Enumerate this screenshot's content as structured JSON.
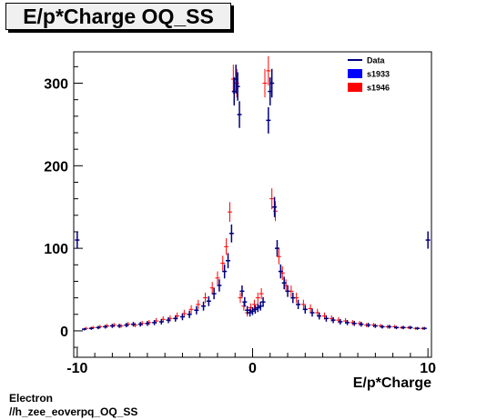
{
  "chart_data": {
    "type": "scatter",
    "title": "E/p*Charge OQ_SS",
    "xlabel": "E/p*Charge",
    "ylabel": "",
    "xlim": [
      -10.2,
      10.2
    ],
    "ylim": [
      -32,
      338
    ],
    "x_ticks": [
      -10,
      0,
      10
    ],
    "x_tick_labels": [
      "-10",
      "0",
      "10"
    ],
    "y_ticks": [
      0,
      100,
      200,
      300
    ],
    "y_tick_labels": [
      "0",
      "100",
      "200",
      "300"
    ],
    "grid": false,
    "legend_position": "top-right",
    "legend": [
      {
        "label": "Data",
        "style": "line",
        "color": "#000080"
      },
      {
        "label": "s1933",
        "style": "box",
        "color": "#0000ff"
      },
      {
        "label": "s1946",
        "style": "box",
        "color": "#ff0000"
      }
    ],
    "series": [
      {
        "name": "s1946",
        "color": "#ff0000",
        "x": [
          -9.5,
          -9.1,
          -8.7,
          -8.3,
          -7.9,
          -7.5,
          -7.1,
          -6.7,
          -6.3,
          -5.9,
          -5.5,
          -5.1,
          -4.7,
          -4.3,
          -3.9,
          -3.5,
          -3.1,
          -2.7,
          -2.3,
          -2.0,
          -1.7,
          -1.5,
          -1.3,
          -1.1,
          -0.9,
          -0.7,
          -0.5,
          -0.3,
          -0.1,
          0.1,
          0.3,
          0.5,
          0.7,
          0.9,
          1.1,
          1.3,
          1.5,
          1.7,
          1.9,
          2.2,
          2.5,
          2.9,
          3.3,
          3.7,
          4.1,
          4.5,
          4.9,
          5.3,
          5.7,
          6.1,
          6.5,
          6.9,
          7.3,
          7.7,
          8.1,
          8.5,
          8.9,
          9.3,
          9.7
        ],
        "y": [
          3,
          4,
          5,
          6,
          7,
          6,
          8,
          7,
          9,
          10,
          12,
          14,
          15,
          18,
          21,
          26,
          32,
          40,
          52,
          64,
          82,
          102,
          144,
          305,
          300,
          40,
          30,
          22,
          28,
          32,
          40,
          45,
          300,
          315,
          160,
          145,
          90,
          70,
          55,
          48,
          40,
          32,
          27,
          22,
          18,
          15,
          13,
          12,
          10,
          9,
          7,
          7,
          6,
          5,
          5,
          4,
          4,
          3,
          3
        ]
      },
      {
        "name": "Data",
        "color": "#000080",
        "x": [
          -10.0,
          -9.6,
          -9.2,
          -8.8,
          -8.4,
          -8.0,
          -7.6,
          -7.2,
          -6.8,
          -6.4,
          -6.0,
          -5.6,
          -5.2,
          -4.8,
          -4.4,
          -4.0,
          -3.6,
          -3.2,
          -2.8,
          -2.5,
          -2.2,
          -1.9,
          -1.6,
          -1.4,
          -1.2,
          -1.05,
          -0.95,
          -0.85,
          -0.75,
          -0.6,
          -0.45,
          -0.3,
          -0.15,
          0.0,
          0.15,
          0.3,
          0.45,
          0.6,
          0.9,
          1.0,
          1.1,
          1.25,
          1.4,
          1.6,
          1.8,
          2.0,
          2.3,
          2.6,
          3.0,
          3.4,
          3.8,
          4.2,
          4.6,
          5.0,
          5.4,
          5.8,
          6.2,
          6.6,
          7.0,
          7.4,
          7.8,
          8.2,
          8.6,
          9.0,
          9.4,
          9.8,
          10.0
        ],
        "y": [
          110,
          2,
          3,
          4,
          5,
          6,
          6,
          7,
          8,
          8,
          9,
          10,
          11,
          13,
          15,
          17,
          20,
          25,
          30,
          36,
          45,
          55,
          72,
          85,
          118,
          290,
          305,
          296,
          262,
          48,
          35,
          25,
          22,
          24,
          26,
          28,
          30,
          35,
          255,
          290,
          300,
          150,
          100,
          72,
          58,
          48,
          40,
          32,
          26,
          22,
          18,
          15,
          13,
          11,
          10,
          9,
          8,
          7,
          6,
          5,
          5,
          4,
          4,
          4,
          3,
          3,
          110
        ]
      }
    ]
  },
  "footer": {
    "line1": "Electron",
    "line2": "//h_zee_eoverpq_OQ_SS"
  }
}
